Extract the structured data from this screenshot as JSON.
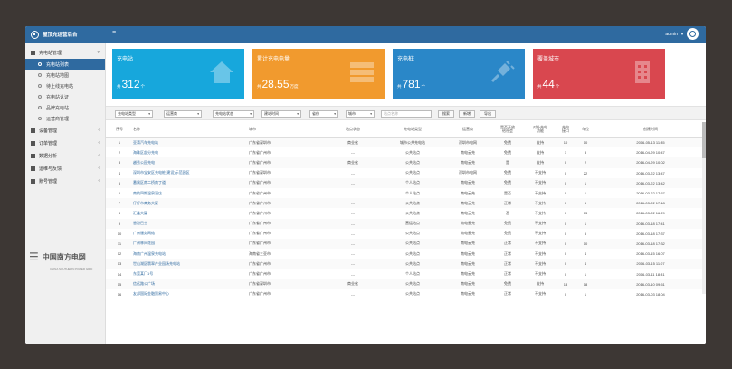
{
  "app": {
    "title": "屋顶充运营后台",
    "user": "admin"
  },
  "sidebar": {
    "groups": [
      {
        "label": "充电站管理",
        "icon": "bar-chart-icon"
      },
      {
        "label": "设备管理",
        "icon": "grid-icon"
      },
      {
        "label": "订单管理",
        "icon": "list-icon"
      },
      {
        "label": "数据分析",
        "icon": "chart-icon"
      },
      {
        "label": "运维与反馈",
        "icon": "comment-icon"
      },
      {
        "label": "账号管理",
        "icon": "user-icon"
      }
    ],
    "subitems": [
      "充电站列表",
      "充电站地图",
      "待上线充电站",
      "充电站认证",
      "品牌充电站",
      "运营商管理"
    ],
    "brand": {
      "name": "中国南方电网",
      "sub": "CHINA SOUTHERN POWER GRID"
    }
  },
  "cards": [
    {
      "title": "充电站",
      "prefix": "共",
      "value": "312",
      "unit": "个",
      "color": "#17a7dc",
      "icon": "house-icon"
    },
    {
      "title": "累计充电电量",
      "prefix": "共",
      "value": "28.55",
      "unit": "万度",
      "color": "#f19a2e",
      "icon": "server-icon"
    },
    {
      "title": "充电桩",
      "prefix": "共",
      "value": "781",
      "unit": "个",
      "color": "#2a87c8",
      "icon": "plug-icon"
    },
    {
      "title": "覆盖城市",
      "prefix": "共",
      "value": "44",
      "unit": "个",
      "color": "#d9474f",
      "icon": "building-icon"
    }
  ],
  "filters": {
    "selects": [
      "充电站类型",
      "运营商",
      "充电站状态",
      "建站时间",
      "省份",
      "城市"
    ],
    "search_placeholder": "站点名称",
    "buttons": [
      "搜索",
      "新增",
      "导出"
    ]
  },
  "table": {
    "columns": [
      "序号",
      "名称",
      "城市",
      "站点状态",
      "充电站类型",
      "运营商",
      "是否开放\n给社会",
      "对外充电\n功能",
      "充电\n接口",
      "车位",
      "创建时间"
    ],
    "rows": [
      [
        "1",
        "亚湾汽车充电站",
        "广东省深圳市",
        "商业化",
        "城市公共充电站",
        "深圳市电网",
        "免费",
        "支持",
        "10",
        "10",
        "2016-05-13 11:35"
      ],
      [
        "2",
        "海珠区部分充电",
        "广东省广州市",
        "---",
        "公共站点",
        "南电云充",
        "免费",
        "支持",
        "1",
        "3",
        "2016-04-29 10:47"
      ],
      [
        "3",
        "越秀公园充电",
        "广东省广州市",
        "商业化",
        "公共站点",
        "南电云充",
        "是",
        "支持",
        "0",
        "2",
        "2016-04-29 10:02"
      ],
      [
        "4",
        "深圳市宝安区充电桩(建设)示范园区",
        "广东省深圳市",
        "---",
        "公共站点",
        "深圳市电网",
        "免费",
        "不支持",
        "0",
        "22",
        "2016-03-22 13:47"
      ],
      [
        "5",
        "番禺区南二桥南丁道",
        "广东省广州市",
        "---",
        "个人站点",
        "南电云充",
        "免费",
        "不支持",
        "0",
        "1",
        "2016-03-22 13:42"
      ],
      [
        "6",
        "南航四期温泉酒店",
        "广东省广州市",
        "---",
        "个人站点",
        "南电云充",
        "是否",
        "不支持",
        "0",
        "1",
        "2016-03-22 17:57"
      ],
      [
        "7",
        "仔仔市商务大厦",
        "广东省广州市",
        "---",
        "公共站点",
        "南电云充",
        "正常",
        "不支持",
        "0",
        "5",
        "2016-03-22 17:18"
      ],
      [
        "8",
        "汇鑫大厦",
        "广东省广州市",
        "---",
        "公共站点",
        "南电云充",
        "否",
        "不支持",
        "0",
        "13",
        "2016-03-22 16:29"
      ],
      [
        "9",
        "香港巴士",
        "广东省广州市",
        "---",
        "营运站点",
        "南电云充",
        "免费",
        "不支持",
        "0",
        "1",
        "2016-03-18 17:41"
      ],
      [
        "10",
        "广州服务网络",
        "广东省广州市",
        "---",
        "公共站点",
        "南电云充",
        "免费",
        "不支持",
        "0",
        "5",
        "2016-03-18 17:37"
      ],
      [
        "11",
        "广州林间花园",
        "广东省广州市",
        "---",
        "公共站点",
        "南电云充",
        "正常",
        "不支持",
        "0",
        "10",
        "2016-03-18 17:32"
      ],
      [
        "12",
        "海南广州温泉充电站",
        "海南省三亚市",
        "---",
        "公共站点",
        "南电云充",
        "正常",
        "不支持",
        "0",
        "4",
        "2016-03-15 16:07"
      ],
      [
        "13",
        "世山湖区翡翠产业园场充电站",
        "广东省广州市",
        "---",
        "公共站点",
        "南电云充",
        "正常",
        "不支持",
        "0",
        "4",
        "2016-03-15 11:07"
      ],
      [
        "14",
        "东莞某厂1号",
        "广东省广州市",
        "---",
        "个人站点",
        "南电云充",
        "正常",
        "不支持",
        "0",
        "1",
        "2016-03-11 18:31"
      ],
      [
        "15",
        "信远路公广场",
        "广东省深圳市",
        "商业化",
        "公共站点",
        "南电云充",
        "免费",
        "支持",
        "18",
        "18",
        "2016-03-10 09:51"
      ],
      [
        "16",
        "友邦国际金融贸易中心",
        "广东省广州市",
        "---",
        "公共站点",
        "南电云充",
        "正常",
        "不支持",
        "0",
        "1",
        "2016-03-03 18:04"
      ]
    ]
  }
}
